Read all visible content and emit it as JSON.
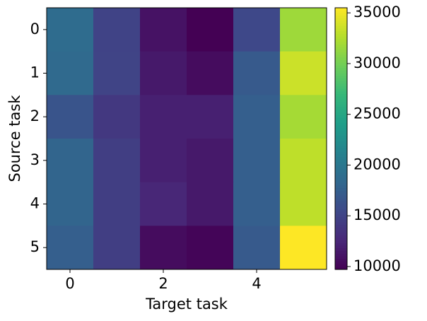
{
  "chart_data": {
    "type": "heatmap",
    "x_label": "Target task",
    "y_label": "Source task",
    "xlim": [
      -0.5,
      5.5
    ],
    "ylim": [
      5.5,
      -0.5
    ],
    "xticks": [
      0,
      2,
      4
    ],
    "yticks": [
      0,
      1,
      2,
      3,
      4,
      5
    ],
    "colormap": "viridis",
    "zlim": [
      9720,
      35500
    ],
    "colorbar_ticks": [
      10000,
      15000,
      20000,
      25000,
      30000,
      35000
    ],
    "values": [
      [
        18800,
        14900,
        11000,
        9720,
        15400,
        31700
      ],
      [
        18500,
        15000,
        11500,
        10500,
        17000,
        33500
      ],
      [
        16500,
        14000,
        12000,
        12000,
        17500,
        32000
      ],
      [
        18000,
        14500,
        12000,
        11500,
        17500,
        33000
      ],
      [
        18000,
        14500,
        12500,
        11500,
        17500,
        33000
      ],
      [
        17500,
        14500,
        10500,
        10000,
        17000,
        35500
      ]
    ]
  }
}
